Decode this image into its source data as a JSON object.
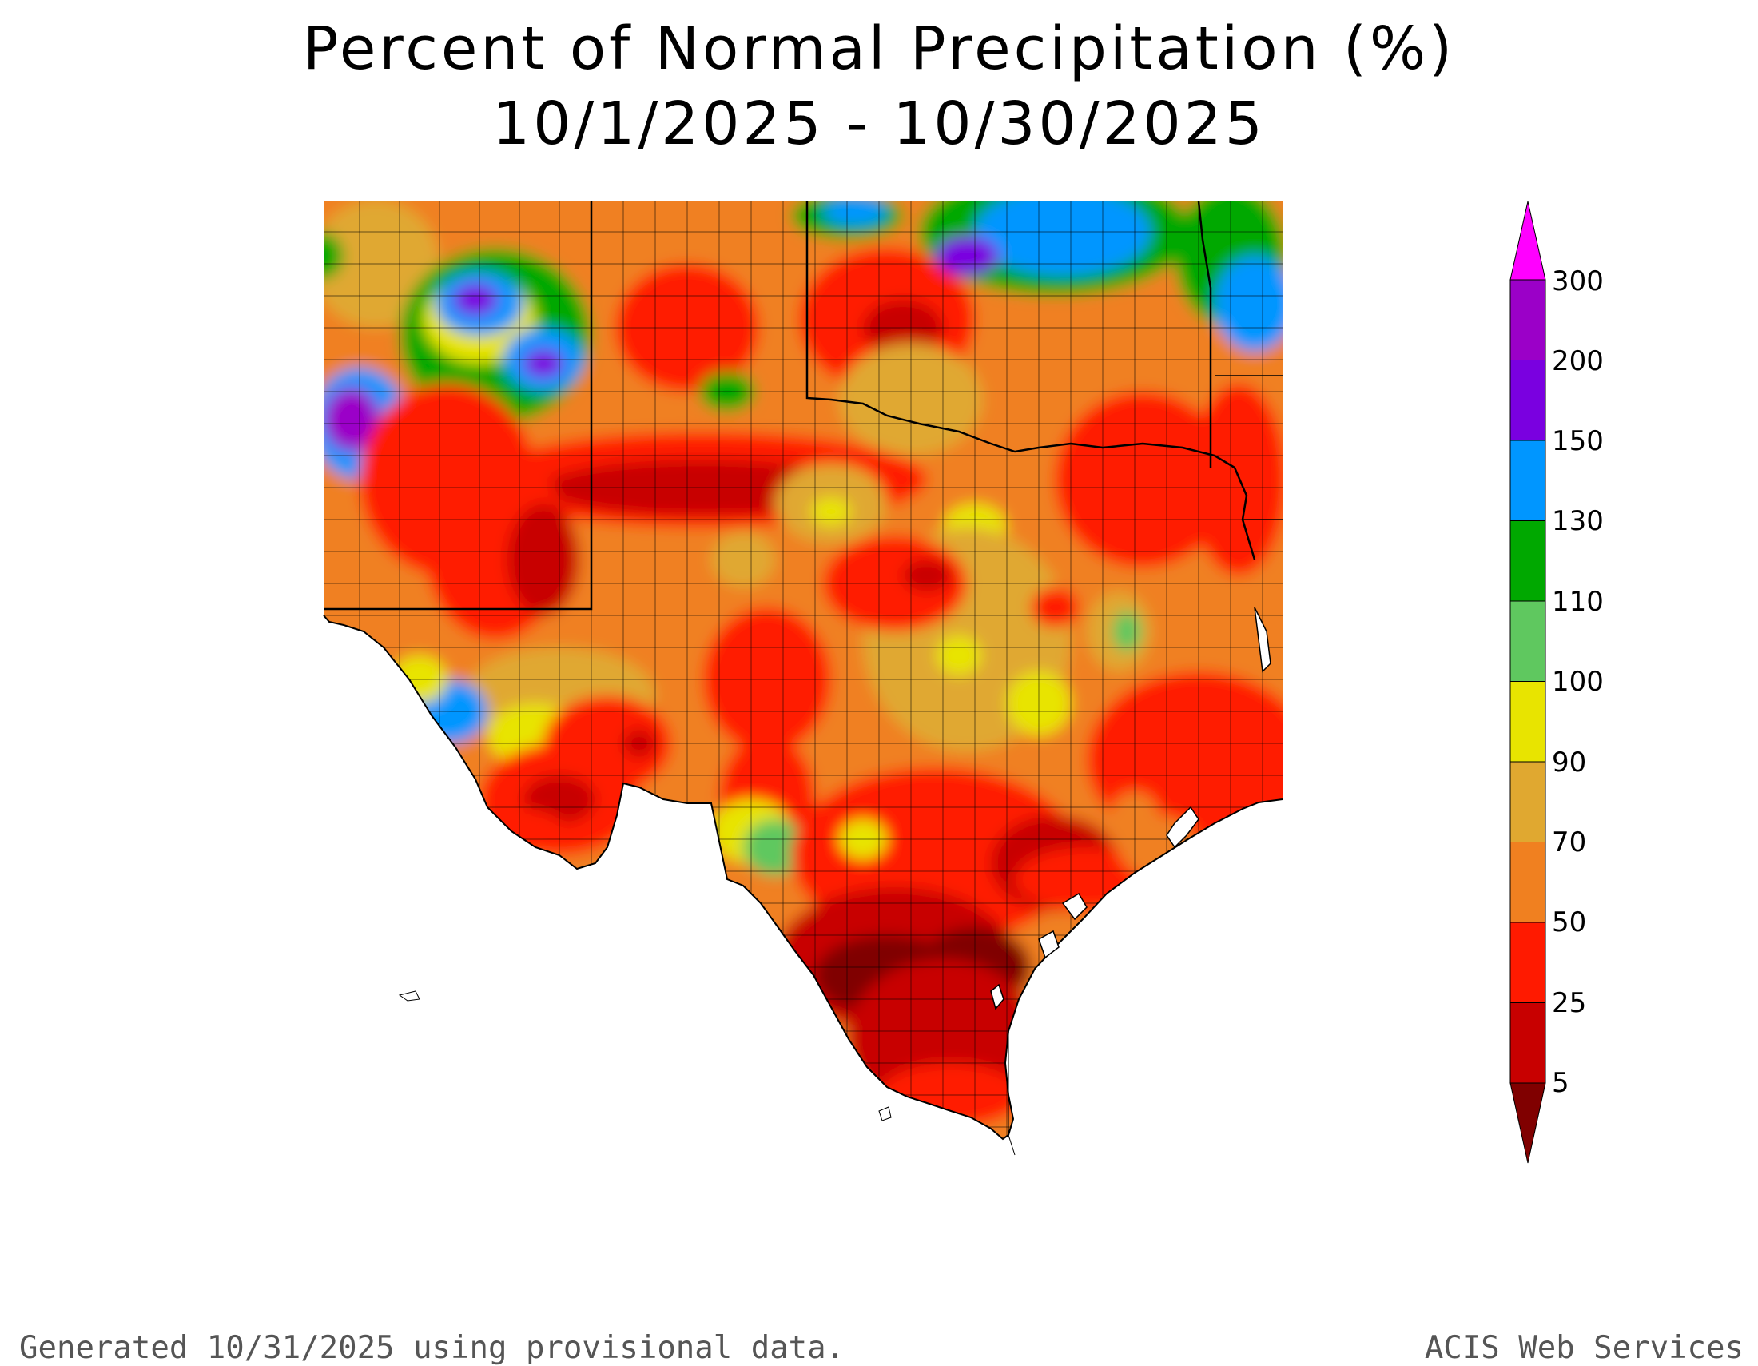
{
  "title": {
    "line1": "Percent of Normal Precipitation (%)",
    "line2": "10/1/2025 - 10/30/2025"
  },
  "legend": {
    "labels": [
      "300",
      "200",
      "150",
      "130",
      "110",
      "100",
      "90",
      "70",
      "50",
      "25",
      "5"
    ],
    "colors": {
      "gt300": "#ff00ff",
      "c200_300": "#9b00c8",
      "c150_200": "#7a00e0",
      "c130_150": "#0096ff",
      "c110_130": "#00a800",
      "c100_110": "#5fc85f",
      "c90_100": "#e8e400",
      "c70_90": "#e0a830",
      "c50_70": "#f08020",
      "c25_50": "#ff1a00",
      "c5_25": "#c80000",
      "lt5": "#800000"
    }
  },
  "footer": {
    "left": "Generated 10/31/2025  using provisional data.",
    "right": "ACIS Web Services"
  }
}
